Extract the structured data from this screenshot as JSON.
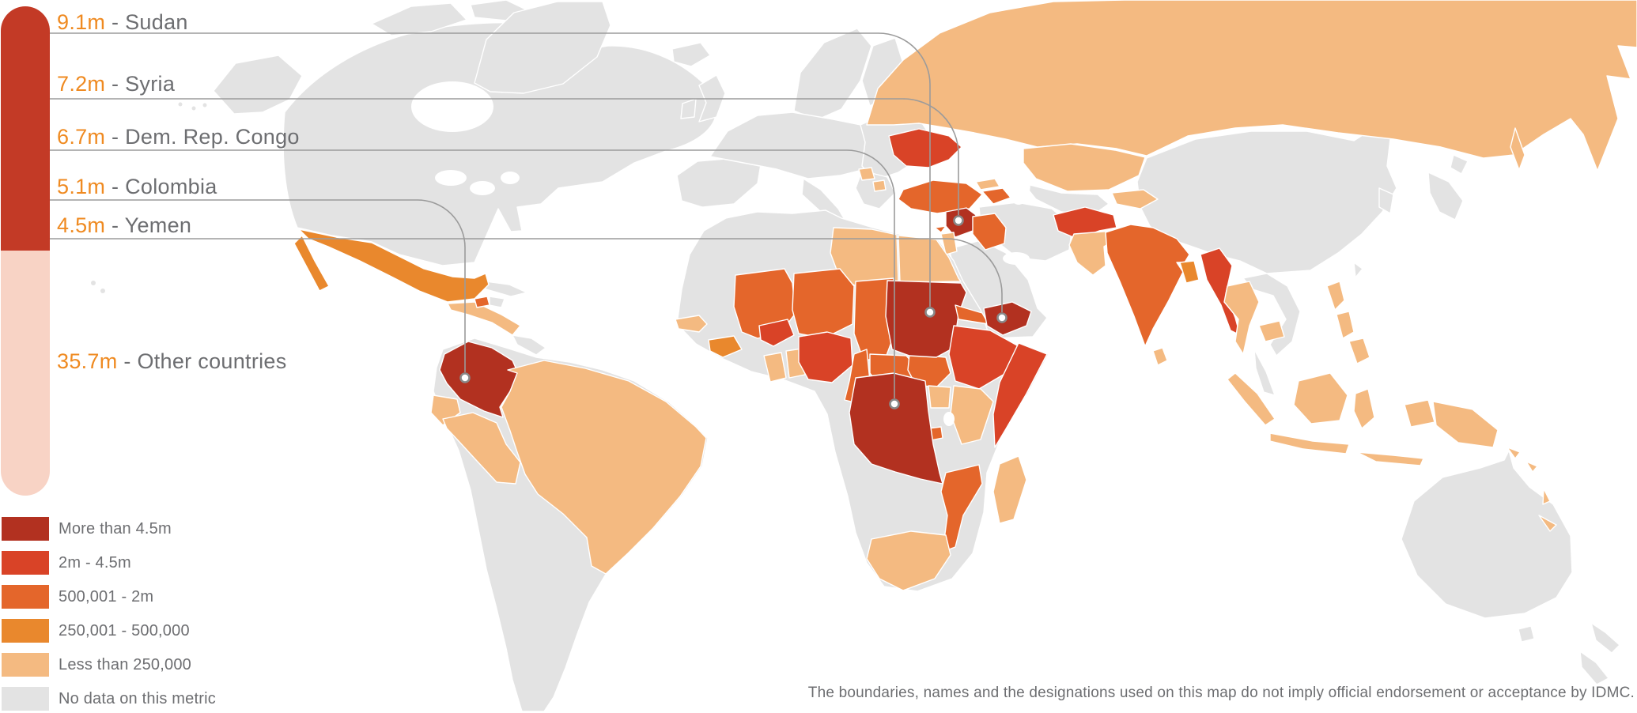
{
  "callouts": [
    {
      "value": "9.1m",
      "country": "Sudan"
    },
    {
      "value": "7.2m",
      "country": "Syria"
    },
    {
      "value": "6.7m",
      "country": "Dem. Rep. Congo"
    },
    {
      "value": "5.1m",
      "country": "Colombia"
    },
    {
      "value": "4.5m",
      "country": "Yemen"
    }
  ],
  "other_countries": {
    "value": "35.7m",
    "label": "Other countries"
  },
  "separator": " - ",
  "legend": {
    "items": [
      {
        "label": "More than 4.5m",
        "category": "cat1"
      },
      {
        "label": "2m - 4.5m",
        "category": "cat2"
      },
      {
        "label": "500,001 - 2m",
        "category": "cat3"
      },
      {
        "label": "250,001 - 500,000",
        "category": "cat4"
      },
      {
        "label": "Less than 250,000",
        "category": "cat5"
      },
      {
        "label": "No data on this metric",
        "category": "nodata"
      }
    ]
  },
  "colors": {
    "cat1": "#b23120",
    "cat2": "#d94327",
    "cat3": "#e4662b",
    "cat4": "#e9882d",
    "cat5": "#f4ba81",
    "nodata": "#e3e3e3",
    "bar_top": "#c33a26",
    "bar_bottom": "#f8d3c5",
    "value_text": "#ef8a21",
    "label_text": "#6d6e71",
    "line": "#9b9b9b",
    "dot_ring": "#898989",
    "water": "#ffffff"
  },
  "map_categories": {
    "russia": "cat5",
    "sakhalin": "cat5",
    "kazakhstan": "cat5",
    "kyrgyz-tajik": "cat5",
    "bosnia": "cat5",
    "macedonia": "cat5",
    "jordan-israel": "cat5",
    "georgia": "cat5",
    "pakistan": "cat5",
    "sri-lanka": "cat5",
    "thailand": "cat5",
    "cambodia": "cat5",
    "sumatra": "cat5",
    "java": "cat5",
    "kalimantan": "cat5",
    "sulawesi": "cat5",
    "lesser-sunda": "cat5",
    "west-papua": "cat5",
    "png": "cat5",
    "solomon-1": "cat5",
    "solomon-2": "cat5",
    "vanuatu": "cat5",
    "new-caledonia": "cat5",
    "philippines-1": "cat5",
    "philippines-2": "cat5",
    "philippines-3": "cat5",
    "central-america": "cat5",
    "ecuador": "cat5",
    "peru": "cat5",
    "brazil": "cat5",
    "libya": "cat5",
    "egypt": "cat5",
    "senegal": "cat5",
    "ghana": "cat5",
    "togo-benin": "cat5",
    "kenya": "cat5",
    "uganda": "cat5",
    "south-africa": "cat5",
    "madagascar": "cat5",
    "mexico": "cat4",
    "baja": "cat4",
    "guinea": "cat4",
    "bangladesh": "cat4",
    "turkey": "cat3",
    "cyprus": "cat3",
    "iraq": "cat3",
    "armenia-azerbaijan": "cat3",
    "india": "cat3",
    "mali": "cat3",
    "niger": "cat3",
    "chad": "cat3",
    "cameroon": "cat3",
    "car": "cat3",
    "south-sudan": "cat3",
    "eritrea": "cat3",
    "burundi": "cat3",
    "mozambique": "cat3",
    "haiti": "cat3",
    "ukraine": "cat2",
    "afghanistan": "cat2",
    "myanmar": "cat2",
    "burkina": "cat2",
    "nigeria": "cat2",
    "ethiopia": "cat2",
    "somalia": "cat2",
    "sudan": "cat1",
    "syria": "cat1",
    "drc": "cat1",
    "colombia": "cat1",
    "yemen": "cat1"
  },
  "footer": "The boundaries, names and the designations used on this map do not imply official endorsement or acceptance by IDMC."
}
